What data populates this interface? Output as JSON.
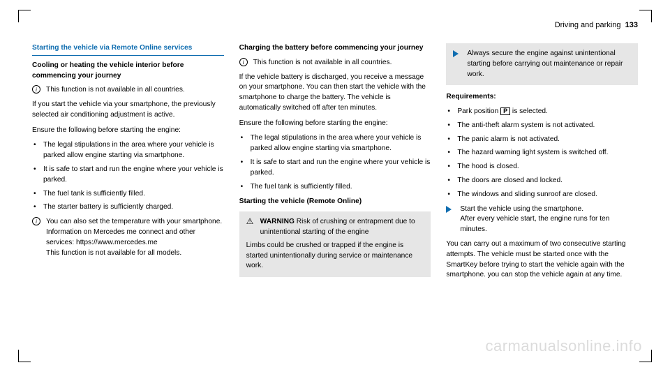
{
  "header": {
    "section": "Driving and parking",
    "page": "133"
  },
  "col1": {
    "sectionTitle": "Starting the vehicle via Remote Online services",
    "sub1": "Cooling or heating the vehicle interior before commencing your journey",
    "info1": "This function is not available in all countries.",
    "p1": "If you start the vehicle via your smartphone, the previously selected air conditioning adjustment is active.",
    "p2": "Ensure the following before starting the engine:",
    "b1": "The legal stipulations in the area where your vehicle is parked allow engine starting via smartphone.",
    "b2": "It is safe to start and run the engine where your vehicle is parked.",
    "b3": "The fuel tank is sufficiently filled.",
    "b4": "The starter battery is sufficiently charged.",
    "info2a": "You can also set the temperature with your smartphone. Information on Mercedes me connect and other services: https://www.mercedes.me",
    "info2b": "This function is not available for all models."
  },
  "col2": {
    "sub1": "Charging the battery before commencing your journey",
    "info1": "This function is not available in all countries.",
    "p1": "If the vehicle battery is discharged, you receive a message on your smartphone. You can then start the vehicle with the smartphone to charge the battery. The vehicle is automatically switched off after ten minutes.",
    "p2": "Ensure the following before starting the engine:",
    "b1": "The legal stipulations in the area where your vehicle is parked allow engine starting via smartphone.",
    "b2": "It is safe to start and run the engine where your vehicle is parked.",
    "b3": "The fuel tank is sufficiently filled.",
    "sub2": "Starting the vehicle (Remote Online)",
    "warnLabel": "WARNING",
    "warnHead": " Risk of crushing or entrapment due to unintentional starting of the engine",
    "warnBody": "Limbs could be crushed or trapped if the engine is started unintentionally during service or maintenance work."
  },
  "col3": {
    "arrow1": "Always secure the engine against unintentional starting before carrying out maintenance or repair work.",
    "reqTitle": "Requirements:",
    "r1a": "Park position ",
    "r1b": " is selected.",
    "r2": "The anti-theft alarm system is not activated.",
    "r3": "The panic alarm is not activated.",
    "r4": "The hazard warning light system is switched off.",
    "r5": "The hood is closed.",
    "r6": "The doors are closed and locked.",
    "r7": "The windows and sliding sunroof are closed.",
    "arrow2a": "Start the vehicle using the smartphone.",
    "arrow2b": "After every vehicle start, the engine runs for ten minutes.",
    "p1": "You can carry out a maximum of two consecutive starting attempts. The vehicle must be started once with the SmartKey before trying to start the vehicle again with the smartphone. you can stop the vehicle again at any time."
  },
  "watermark": "carmanualsonline.info"
}
